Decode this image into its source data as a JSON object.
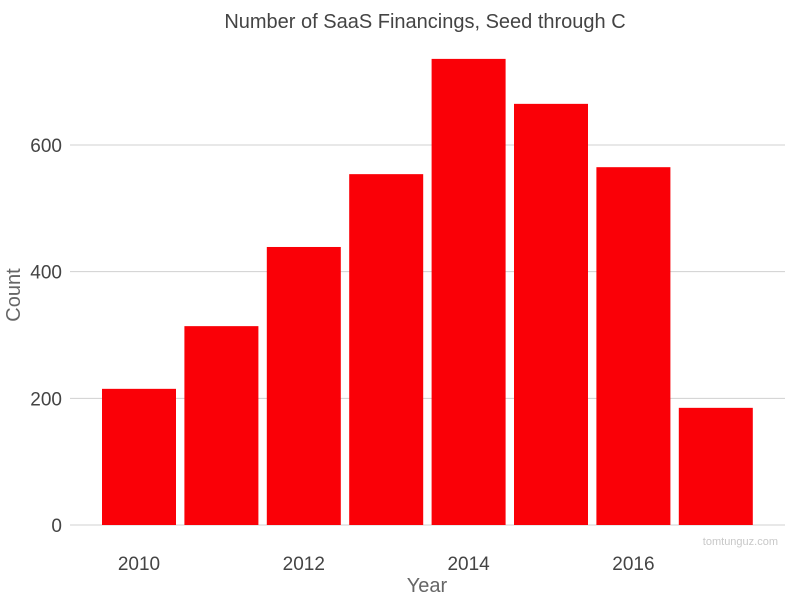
{
  "chart_data": {
    "type": "bar",
    "title": "Number of SaaS Financings, Seed through C",
    "xlabel": "Year",
    "ylabel": "Count",
    "categories": [
      2010,
      2011,
      2012,
      2013,
      2014,
      2015,
      2016,
      2017
    ],
    "values": [
      215,
      314,
      439,
      554,
      736,
      665,
      565,
      185
    ],
    "x_ticks": [
      "2010",
      "2012",
      "2014",
      "2016"
    ],
    "y_ticks": [
      "0",
      "200",
      "400",
      "600"
    ],
    "ylim": [
      0,
      760
    ],
    "grid": "horizontal",
    "bar_color": "#fa0007",
    "grid_color": "#d0d0d0",
    "watermark": "tomtunguz.com"
  }
}
